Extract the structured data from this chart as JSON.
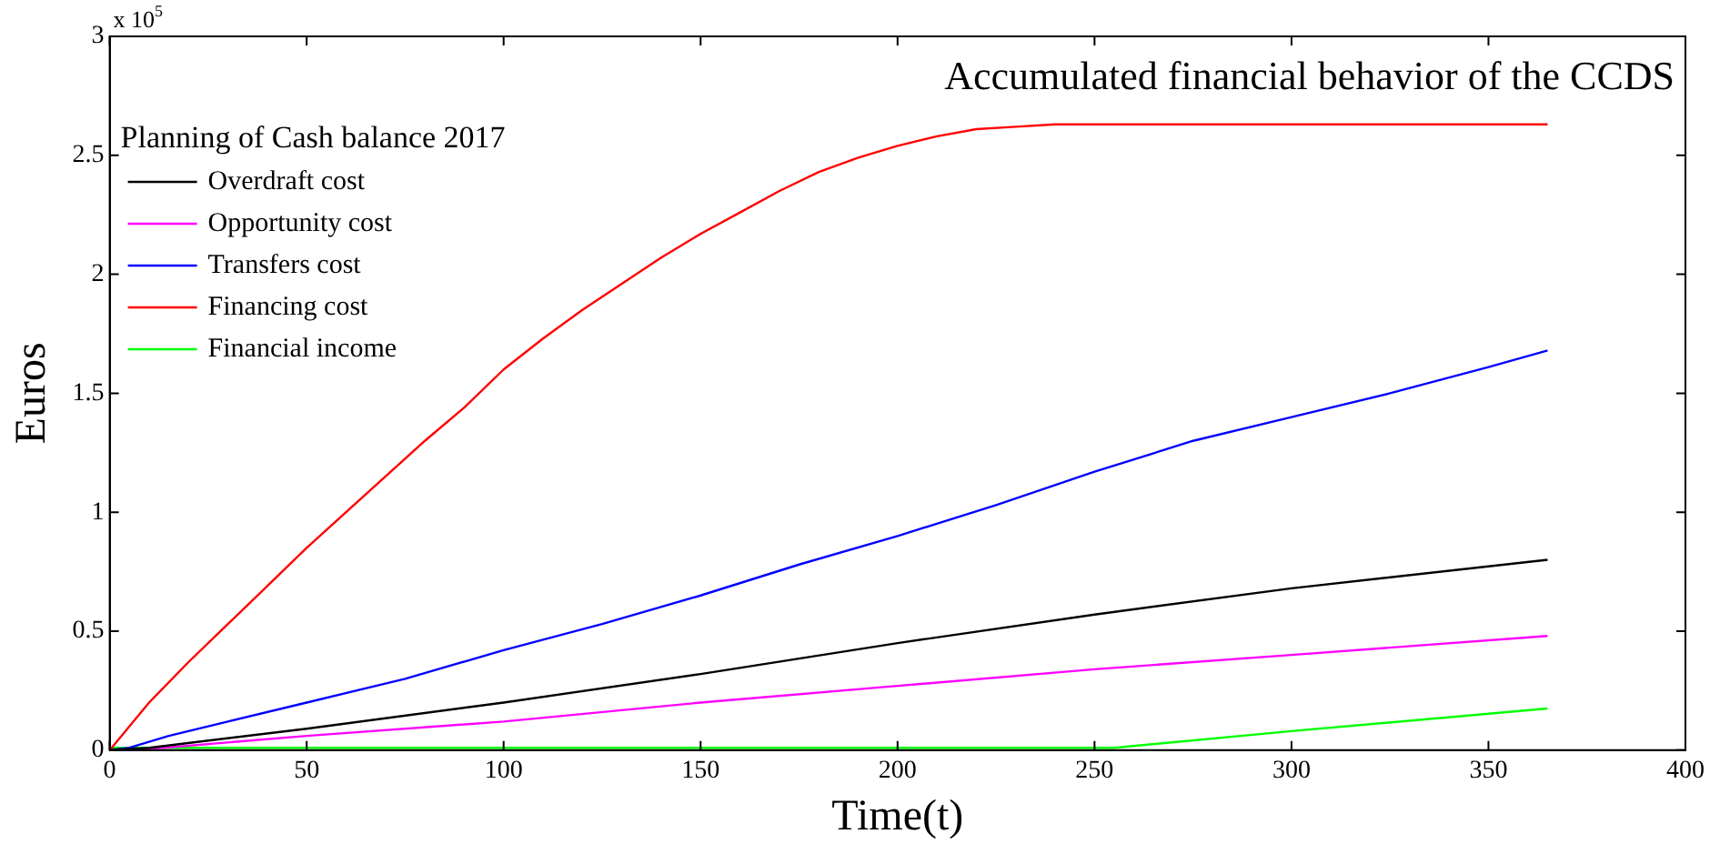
{
  "chart_data": {
    "type": "line",
    "title": "Accumulated financial behavior of the CCDS",
    "subtitle": "Planning of Cash balance 2017",
    "xlabel": "Time(t)",
    "ylabel": "Euros",
    "annotations": [
      "x 10$^{5}$"
    ],
    "xlim": [
      0,
      400
    ],
    "xticks": [
      0,
      50,
      100,
      150,
      200,
      250,
      300,
      350,
      400
    ],
    "ylim": [
      0,
      3
    ],
    "yticks": [
      0,
      0.5,
      1,
      1.5,
      2,
      2.5,
      3
    ],
    "legend": "top left",
    "marker": "none",
    "line_style": "solid",
    "grid": false,
    "series": [
      {
        "name": "Overdraft cost",
        "color": "#000000",
        "x": [
          0,
          10,
          50,
          100,
          150,
          200,
          250,
          300,
          365
        ],
        "values": [
          0,
          0.01,
          0.09,
          0.2,
          0.32,
          0.45,
          0.57,
          0.68,
          0.8
        ]
      },
      {
        "name": "Opportunity cost",
        "color": "#ff00ff",
        "x": [
          0,
          10,
          50,
          100,
          150,
          200,
          250,
          300,
          365
        ],
        "values": [
          0,
          0.005,
          0.06,
          0.12,
          0.2,
          0.27,
          0.34,
          0.4,
          0.48
        ]
      },
      {
        "name": "Transfers cost",
        "color": "#0000ff",
        "x": [
          0,
          5,
          15,
          30,
          50,
          75,
          100,
          125,
          150,
          175,
          200,
          225,
          250,
          275,
          300,
          325,
          350,
          365
        ],
        "values": [
          0,
          0.01,
          0.06,
          0.12,
          0.2,
          0.3,
          0.42,
          0.53,
          0.65,
          0.78,
          0.9,
          1.03,
          1.17,
          1.3,
          1.4,
          1.5,
          1.61,
          1.68
        ]
      },
      {
        "name": "Financing cost",
        "color": "#ff0000",
        "x": [
          0,
          10,
          20,
          30,
          40,
          50,
          60,
          70,
          80,
          90,
          100,
          110,
          120,
          130,
          140,
          150,
          160,
          170,
          180,
          190,
          200,
          210,
          220,
          230,
          240,
          250,
          365
        ],
        "values": [
          0,
          0.2,
          0.37,
          0.53,
          0.69,
          0.85,
          1.0,
          1.15,
          1.3,
          1.44,
          1.6,
          1.73,
          1.85,
          1.96,
          2.07,
          2.17,
          2.26,
          2.35,
          2.43,
          2.49,
          2.54,
          2.58,
          2.61,
          2.62,
          2.63,
          2.63,
          2.63
        ]
      },
      {
        "name": "Financial income",
        "color": "#00ff00",
        "x": [
          0,
          100,
          200,
          255,
          300,
          365
        ],
        "values": [
          0.01,
          0.01,
          0.01,
          0.01,
          0.08,
          0.175
        ]
      }
    ]
  }
}
